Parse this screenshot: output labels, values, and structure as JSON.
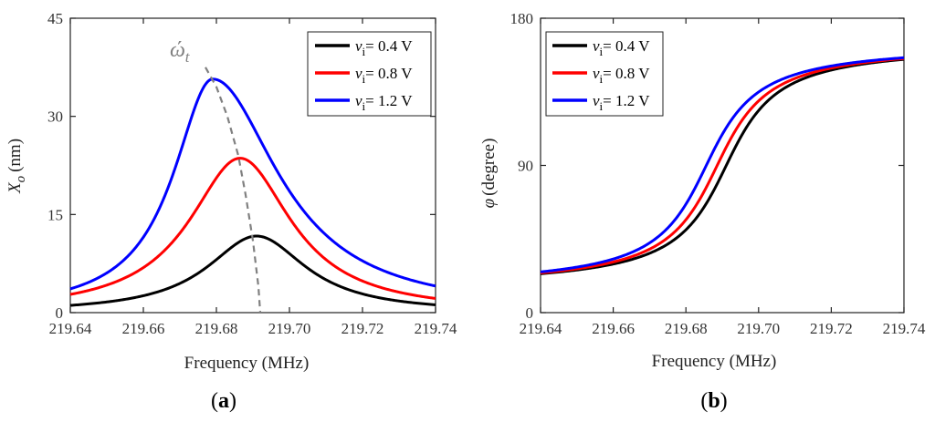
{
  "chart_data": [
    {
      "id": "a",
      "type": "line",
      "caption": "a",
      "xlabel": "Frequency (MHz)",
      "ylabel_main": "X",
      "ylabel_sub": "o",
      "ylabel_unit": "(nm)",
      "xlim": [
        219.64,
        219.74
      ],
      "ylim": [
        0,
        45
      ],
      "xticks": [
        "219.64",
        "219.66",
        "219.68",
        "219.70",
        "219.72",
        "219.74"
      ],
      "xtick_values": [
        219.64,
        219.66,
        219.68,
        219.7,
        219.72,
        219.74
      ],
      "yticks": [
        "0",
        "15",
        "30",
        "45"
      ],
      "ytick_values": [
        0,
        15,
        30,
        45
      ],
      "legend_position": "top-right",
      "annotation": {
        "text_main": "ώ",
        "text_sub": "t",
        "color": "#808080"
      },
      "dashed_curve": {
        "x": [
          219.677,
          219.68,
          219.683,
          219.686,
          219.688,
          219.69,
          219.6915,
          219.692
        ],
        "y": [
          37.5,
          34.5,
          30.0,
          24.0,
          18.0,
          11.0,
          4.0,
          0.0
        ]
      },
      "series": [
        {
          "name": "0.4 V",
          "label_var": "v",
          "label_sub": "i",
          "label_eq": "= 0.4 V",
          "color": "#000000",
          "peak_x": 219.691,
          "peak_y": 11.7,
          "gamma": 0.0165,
          "base": 0.0,
          "skew_left": 1.0,
          "skew_right": 1.0
        },
        {
          "name": "0.8 V",
          "label_var": "v",
          "label_sub": "i",
          "label_eq": "= 0.8 V",
          "color": "#ff0000",
          "peak_x": 219.6865,
          "peak_y": 23.6,
          "gamma": 0.017,
          "base": 0.0,
          "skew_left": 1.0,
          "skew_right": 1.0
        },
        {
          "name": "1.2 V",
          "label_var": "v",
          "label_sub": "i",
          "label_eq": "= 1.2 V",
          "color": "#0000ff",
          "peak_x": 219.679,
          "peak_y": 35.7,
          "gamma": 0.0175,
          "base": 0.0,
          "skew_left": 0.75,
          "skew_right": 1.25
        }
      ]
    },
    {
      "id": "b",
      "type": "line",
      "caption": "b",
      "xlabel": "Frequency (MHz)",
      "ylabel_main": "φ",
      "ylabel_unit": "(degree)",
      "xlim": [
        219.64,
        219.74
      ],
      "ylim": [
        0,
        180
      ],
      "xticks": [
        "219.64",
        "219.66",
        "219.68",
        "219.70",
        "219.72",
        "219.74"
      ],
      "xtick_values": [
        219.64,
        219.66,
        219.68,
        219.7,
        219.72,
        219.74
      ],
      "yticks": [
        "0",
        "90",
        "180"
      ],
      "ytick_values": [
        0,
        90,
        180
      ],
      "legend_position": "top-left",
      "series": [
        {
          "name": "0.4 V",
          "label_var": "v",
          "label_sub": "i",
          "label_eq": "= 0.4 V",
          "color": "#000000",
          "center": 219.691,
          "width": 0.0105,
          "lo": 14,
          "hi": 165
        },
        {
          "name": "0.8 V",
          "label_var": "v",
          "label_sub": "i",
          "label_eq": "= 0.8 V",
          "color": "#ff0000",
          "center": 219.6885,
          "width": 0.0105,
          "lo": 14,
          "hi": 165
        },
        {
          "name": "1.2 V",
          "label_var": "v",
          "label_sub": "i",
          "label_eq": "= 1.2 V",
          "color": "#0000ff",
          "center": 219.6855,
          "width": 0.0105,
          "lo": 14,
          "hi": 165
        }
      ]
    }
  ]
}
